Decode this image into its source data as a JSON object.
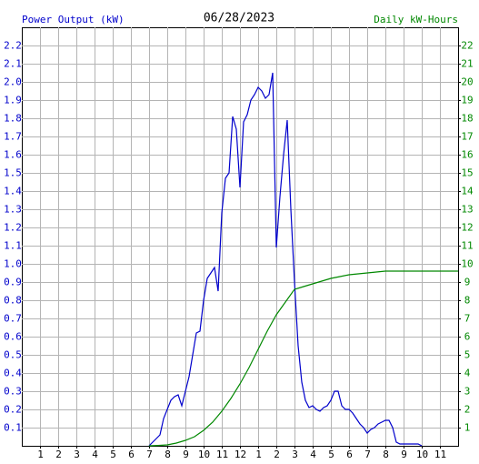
{
  "chart_data": {
    "type": "line",
    "title": "06/28/2023",
    "y_label": "Power Output (kW)",
    "y2_label": "Daily kW-Hours",
    "xlim": [
      0,
      24
    ],
    "xticks": [
      1,
      2,
      3,
      4,
      5,
      6,
      7,
      8,
      9,
      10,
      11,
      12,
      {
        "value": 13,
        "label": "1"
      },
      {
        "value": 14,
        "label": "2"
      },
      {
        "value": 15,
        "label": "3"
      },
      {
        "value": 16,
        "label": "4"
      },
      {
        "value": 17,
        "label": "5"
      },
      {
        "value": 18,
        "label": "6"
      },
      {
        "value": 19,
        "label": "7"
      },
      {
        "value": 20,
        "label": "8"
      },
      {
        "value": 21,
        "label": "9"
      },
      {
        "value": 22,
        "label": "10"
      },
      {
        "value": 23,
        "label": "11"
      }
    ],
    "ylim": [
      0,
      2.3
    ],
    "yticks": [
      0.1,
      0.2,
      0.3,
      0.4,
      0.5,
      0.6,
      0.7,
      0.8,
      0.9,
      {
        "value": 1,
        "label": "1.0"
      },
      1.1,
      1.2,
      1.3,
      1.4,
      1.5,
      1.6,
      1.7,
      1.8,
      1.9,
      {
        "value": 2,
        "label": "2.0"
      },
      2.1,
      2.2
    ],
    "y2lim": [
      0,
      23
    ],
    "y2ticks": [
      1,
      2,
      3,
      4,
      5,
      6,
      7,
      8,
      9,
      10,
      11,
      12,
      13,
      14,
      15,
      16,
      17,
      18,
      19,
      20,
      21,
      22
    ],
    "grid": true,
    "series": [
      {
        "color": "#0000cc",
        "x": [
          7.0,
          7.2,
          7.4,
          7.6,
          7.8,
          8.0,
          8.2,
          8.4,
          8.6,
          8.8,
          9.0,
          9.2,
          9.4,
          9.6,
          9.8,
          10.0,
          10.2,
          10.4,
          10.6,
          10.8,
          11.0,
          11.2,
          11.4,
          11.6,
          11.8,
          12.0,
          12.2,
          12.4,
          12.6,
          12.8,
          13.0,
          13.2,
          13.4,
          13.6,
          13.8,
          14.0,
          14.2,
          14.4,
          14.6,
          14.8,
          15.0,
          15.2,
          15.4,
          15.6,
          15.8,
          16.0,
          16.2,
          16.4,
          16.6,
          16.8,
          17.0,
          17.2,
          17.4,
          17.6,
          17.8,
          18.0,
          18.2,
          18.4,
          18.6,
          18.8,
          19.0,
          19.2,
          19.4,
          19.6,
          19.8,
          20.0,
          20.2,
          20.4,
          20.6,
          20.8,
          21.0,
          21.2,
          21.4,
          21.6,
          21.8,
          22.0
        ],
        "values": [
          0,
          0.02,
          0.04,
          0.06,
          0.15,
          0.2,
          0.25,
          0.27,
          0.28,
          0.22,
          0.3,
          0.38,
          0.5,
          0.62,
          0.63,
          0.8,
          0.92,
          0.95,
          0.98,
          0.85,
          1.28,
          1.47,
          1.5,
          1.81,
          1.74,
          1.42,
          1.78,
          1.82,
          1.9,
          1.93,
          1.97,
          1.95,
          1.91,
          1.93,
          2.05,
          1.09,
          1.37,
          1.6,
          1.79,
          1.3,
          0.9,
          0.55,
          0.35,
          0.25,
          0.21,
          0.22,
          0.2,
          0.19,
          0.21,
          0.22,
          0.25,
          0.3,
          0.3,
          0.22,
          0.2,
          0.2,
          0.18,
          0.15,
          0.12,
          0.1,
          0.07,
          0.09,
          0.1,
          0.12,
          0.13,
          0.14,
          0.14,
          0.1,
          0.02,
          0.01,
          0.01,
          0.01,
          0.01,
          0.01,
          0.01,
          0
        ]
      },
      {
        "color": "#008800",
        "axis": "y2",
        "x": [
          7.0,
          7.5,
          8.0,
          8.5,
          9.0,
          9.5,
          10.0,
          10.5,
          11.0,
          11.5,
          12.0,
          12.5,
          13.0,
          13.5,
          14.0,
          14.5,
          15.0,
          15.5,
          16.0,
          16.5,
          17.0,
          17.5,
          18.0,
          18.5,
          19.0,
          19.5,
          20.0,
          21.0,
          22.0,
          23.0,
          24.0
        ],
        "values": [
          0,
          0.02,
          0.05,
          0.15,
          0.3,
          0.5,
          0.85,
          1.3,
          1.9,
          2.6,
          3.4,
          4.3,
          5.3,
          6.3,
          7.2,
          7.9,
          8.6,
          8.75,
          8.9,
          9.05,
          9.2,
          9.3,
          9.4,
          9.45,
          9.5,
          9.55,
          9.6,
          9.6,
          9.6,
          9.6,
          9.6
        ]
      }
    ]
  }
}
